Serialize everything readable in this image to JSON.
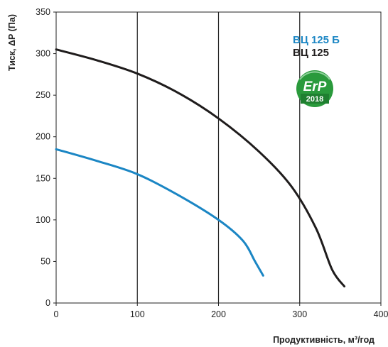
{
  "chart_data": {
    "type": "line",
    "title": "",
    "xlabel": "Продуктивність, м³/год",
    "ylabel": "Тиск, ΔР (Па)",
    "xlim": [
      0,
      400
    ],
    "ylim": [
      0,
      350
    ],
    "x_ticks": [
      0,
      100,
      200,
      300,
      400
    ],
    "y_ticks": [
      0,
      50,
      100,
      150,
      200,
      250,
      300,
      350
    ],
    "grid": "vertical",
    "legend_position": "top-right",
    "series": [
      {
        "name": "ВЦ 125 Б",
        "color": "#1b86c4",
        "points": [
          [
            0,
            185
          ],
          [
            50,
            171
          ],
          [
            100,
            155
          ],
          [
            150,
            130
          ],
          [
            200,
            100
          ],
          [
            230,
            75
          ],
          [
            245,
            50
          ],
          [
            255,
            33
          ]
        ]
      },
      {
        "name": "ВЦ 125",
        "color": "#1f1c1c",
        "points": [
          [
            0,
            305
          ],
          [
            50,
            292
          ],
          [
            100,
            276
          ],
          [
            150,
            253
          ],
          [
            200,
            222
          ],
          [
            250,
            182
          ],
          [
            290,
            140
          ],
          [
            320,
            90
          ],
          [
            340,
            40
          ],
          [
            355,
            20
          ]
        ]
      }
    ],
    "badge": {
      "text": "ErP",
      "year": "2018",
      "color": "#2a9a3c"
    }
  }
}
